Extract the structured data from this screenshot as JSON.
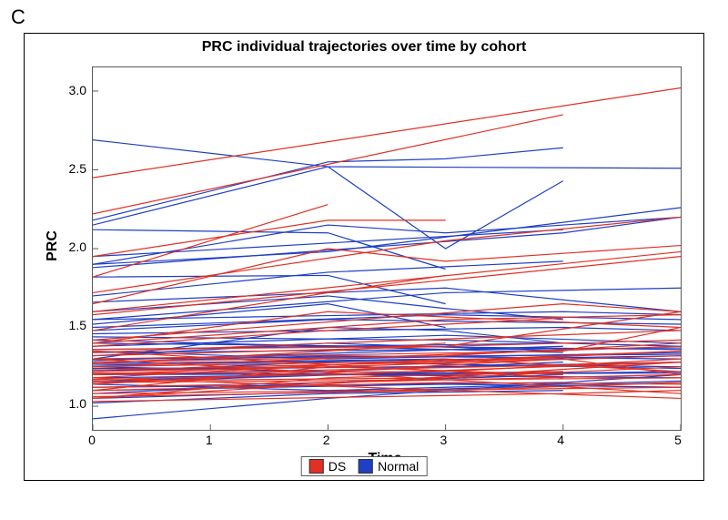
{
  "panel_label": "C",
  "chart": {
    "type": "line-spaghetti",
    "title": "PRC individual trajectories over time by cohort",
    "title_fontsize": 16,
    "title_fontweight": "bold",
    "x_axis": {
      "label": "Time",
      "min": 0,
      "max": 5,
      "ticks": [
        0,
        1,
        2,
        3,
        4,
        5
      ],
      "label_fontsize": 16
    },
    "y_axis": {
      "label": "PRC",
      "min": 0.85,
      "max": 3.15,
      "ticks": [
        1.0,
        1.5,
        2.0,
        2.5,
        3.0
      ],
      "label_fontsize": 16
    },
    "tick_fontsize": 14,
    "background_color": "#ffffff",
    "frame_color": "#000000",
    "plot_border_color": "#5a5a5a",
    "line_width": 1.2,
    "groups": {
      "DS": {
        "color": "#e23024",
        "label": "DS"
      },
      "Normal": {
        "color": "#1f3fc5",
        "label": "Normal"
      }
    },
    "legend": {
      "order": [
        "DS",
        "Normal"
      ],
      "position": "bottom-center"
    },
    "series_DS": [
      [
        [
          0,
          2.45
        ],
        [
          5,
          3.02
        ]
      ],
      [
        [
          0,
          2.22
        ],
        [
          4,
          2.85
        ]
      ],
      [
        [
          0,
          1.95
        ],
        [
          2,
          2.18
        ],
        [
          3,
          2.18
        ]
      ],
      [
        [
          0,
          1.72
        ],
        [
          3,
          2.05
        ],
        [
          5,
          2.2
        ]
      ],
      [
        [
          0,
          1.65
        ],
        [
          2,
          2.0
        ],
        [
          3,
          1.92
        ],
        [
          5,
          2.02
        ]
      ],
      [
        [
          0,
          1.82
        ],
        [
          2,
          2.28
        ]
      ],
      [
        [
          0,
          1.6
        ],
        [
          5,
          1.98
        ]
      ],
      [
        [
          0,
          1.58
        ],
        [
          3,
          1.8
        ],
        [
          5,
          1.95
        ]
      ],
      [
        [
          0,
          1.48
        ],
        [
          2,
          1.72
        ],
        [
          3,
          1.83
        ]
      ],
      [
        [
          0,
          1.42
        ],
        [
          4,
          1.65
        ],
        [
          5,
          1.6
        ]
      ],
      [
        [
          0,
          1.4
        ],
        [
          3,
          1.55
        ],
        [
          5,
          1.58
        ]
      ],
      [
        [
          0,
          1.38
        ],
        [
          2,
          1.48
        ],
        [
          4,
          1.56
        ]
      ],
      [
        [
          0,
          1.36
        ],
        [
          3,
          1.38
        ],
        [
          5,
          1.6
        ]
      ],
      [
        [
          0,
          1.34
        ],
        [
          2,
          1.4
        ],
        [
          5,
          1.48
        ]
      ],
      [
        [
          0,
          1.32
        ],
        [
          5,
          1.42
        ]
      ],
      [
        [
          0,
          1.3
        ],
        [
          4,
          1.35
        ],
        [
          5,
          1.5
        ]
      ],
      [
        [
          0,
          1.28
        ],
        [
          3,
          1.32
        ],
        [
          5,
          1.4
        ]
      ],
      [
        [
          0,
          1.27
        ],
        [
          2,
          1.35
        ],
        [
          3,
          1.4
        ]
      ],
      [
        [
          0,
          1.25
        ],
        [
          5,
          1.38
        ]
      ],
      [
        [
          0,
          1.25
        ],
        [
          4,
          1.3
        ]
      ],
      [
        [
          0,
          1.23
        ],
        [
          3,
          1.28
        ],
        [
          5,
          1.35
        ]
      ],
      [
        [
          0,
          1.22
        ],
        [
          2,
          1.25
        ],
        [
          5,
          1.32
        ]
      ],
      [
        [
          0,
          1.21
        ],
        [
          3,
          1.22
        ],
        [
          5,
          1.3
        ]
      ],
      [
        [
          0,
          1.2
        ],
        [
          5,
          1.35
        ]
      ],
      [
        [
          0,
          1.2
        ],
        [
          4,
          1.26
        ],
        [
          5,
          1.28
        ]
      ],
      [
        [
          0,
          1.18
        ],
        [
          3,
          1.3
        ],
        [
          5,
          1.22
        ]
      ],
      [
        [
          0,
          1.17
        ],
        [
          2,
          1.2
        ],
        [
          5,
          1.28
        ]
      ],
      [
        [
          0,
          1.16
        ],
        [
          3,
          1.18
        ],
        [
          5,
          1.25
        ]
      ],
      [
        [
          0,
          1.15
        ],
        [
          5,
          1.18
        ]
      ],
      [
        [
          0,
          1.14
        ],
        [
          4,
          1.3
        ],
        [
          5,
          1.2
        ]
      ],
      [
        [
          0,
          1.12
        ],
        [
          2,
          1.15
        ],
        [
          5,
          1.2
        ]
      ],
      [
        [
          0,
          1.1
        ],
        [
          3,
          1.15
        ],
        [
          5,
          1.14
        ]
      ],
      [
        [
          0,
          1.1
        ],
        [
          2,
          1.25
        ],
        [
          4,
          1.2
        ]
      ],
      [
        [
          0,
          1.08
        ],
        [
          5,
          1.12
        ]
      ],
      [
        [
          0,
          1.06
        ],
        [
          3,
          1.1
        ],
        [
          5,
          1.15
        ]
      ],
      [
        [
          0,
          1.05
        ],
        [
          2,
          1.18
        ],
        [
          4,
          1.22
        ]
      ],
      [
        [
          0,
          1.03
        ],
        [
          4,
          1.08
        ],
        [
          5,
          1.1
        ]
      ],
      [
        [
          0,
          1.05
        ],
        [
          5,
          1.28
        ]
      ],
      [
        [
          0,
          1.3
        ],
        [
          5,
          1.08
        ]
      ],
      [
        [
          0,
          1.18
        ],
        [
          5,
          1.05
        ]
      ],
      [
        [
          0,
          1.35
        ],
        [
          4,
          1.18
        ]
      ],
      [
        [
          0,
          1.4
        ],
        [
          2,
          1.6
        ],
        [
          5,
          1.5
        ]
      ]
    ],
    "series_Normal": [
      [
        [
          0,
          2.69
        ],
        [
          2,
          2.52
        ],
        [
          5,
          2.51
        ]
      ],
      [
        [
          0,
          2.18
        ],
        [
          2,
          2.55
        ],
        [
          3,
          2.57
        ],
        [
          4,
          2.64
        ]
      ],
      [
        [
          0,
          2.15
        ],
        [
          2,
          2.52
        ],
        [
          3,
          2.0
        ],
        [
          4,
          2.43
        ]
      ],
      [
        [
          0,
          2.12
        ],
        [
          2,
          2.1
        ],
        [
          3,
          1.87
        ]
      ],
      [
        [
          0,
          1.9
        ],
        [
          2,
          2.15
        ],
        [
          3,
          2.1
        ],
        [
          5,
          2.2
        ]
      ],
      [
        [
          0,
          1.9
        ],
        [
          2,
          1.98
        ],
        [
          5,
          2.26
        ]
      ],
      [
        [
          0,
          1.88
        ],
        [
          4,
          2.1
        ],
        [
          5,
          2.2
        ]
      ],
      [
        [
          0,
          1.82
        ],
        [
          2,
          1.83
        ],
        [
          3,
          1.65
        ]
      ],
      [
        [
          0,
          1.7
        ],
        [
          2,
          1.85
        ],
        [
          4,
          1.92
        ]
      ],
      [
        [
          0,
          1.66
        ],
        [
          3,
          1.75
        ],
        [
          5,
          1.6
        ]
      ],
      [
        [
          0,
          1.6
        ],
        [
          2,
          1.7
        ],
        [
          3,
          1.62
        ],
        [
          4,
          1.55
        ]
      ],
      [
        [
          0,
          1.55
        ],
        [
          4,
          1.6
        ],
        [
          5,
          1.58
        ]
      ],
      [
        [
          0,
          1.52
        ],
        [
          2,
          1.65
        ],
        [
          3,
          1.5
        ]
      ],
      [
        [
          0,
          1.5
        ],
        [
          3,
          1.58
        ],
        [
          5,
          1.55
        ]
      ],
      [
        [
          0,
          1.48
        ],
        [
          2,
          1.55
        ],
        [
          5,
          1.52
        ]
      ],
      [
        [
          0,
          1.46
        ],
        [
          4,
          1.5
        ],
        [
          5,
          1.48
        ]
      ],
      [
        [
          0,
          1.44
        ],
        [
          3,
          1.42
        ],
        [
          5,
          1.38
        ]
      ],
      [
        [
          0,
          1.42
        ],
        [
          2,
          1.38
        ],
        [
          4,
          1.34
        ]
      ],
      [
        [
          0,
          1.4
        ],
        [
          5,
          1.36
        ]
      ],
      [
        [
          0,
          1.38
        ],
        [
          3,
          1.45
        ],
        [
          5,
          1.4
        ]
      ],
      [
        [
          0,
          1.36
        ],
        [
          4,
          1.4
        ]
      ],
      [
        [
          0,
          1.35
        ],
        [
          2,
          1.3
        ],
        [
          5,
          1.34
        ]
      ],
      [
        [
          0,
          1.34
        ],
        [
          3,
          1.36
        ],
        [
          5,
          1.37
        ]
      ],
      [
        [
          0,
          1.32
        ],
        [
          2,
          1.4
        ],
        [
          4,
          1.35
        ]
      ],
      [
        [
          0,
          1.3
        ],
        [
          5,
          1.33
        ]
      ],
      [
        [
          0,
          1.29
        ],
        [
          4,
          1.38
        ]
      ],
      [
        [
          0,
          1.28
        ],
        [
          2,
          1.32
        ],
        [
          5,
          1.3
        ]
      ],
      [
        [
          0,
          1.27
        ],
        [
          3,
          1.3
        ]
      ],
      [
        [
          0,
          1.26
        ],
        [
          5,
          1.32
        ]
      ],
      [
        [
          0,
          1.25
        ],
        [
          2,
          1.22
        ],
        [
          4,
          1.28
        ]
      ],
      [
        [
          0,
          1.24
        ],
        [
          3,
          1.25
        ],
        [
          5,
          1.28
        ]
      ],
      [
        [
          0,
          1.23
        ],
        [
          4,
          1.26
        ],
        [
          5,
          1.25
        ]
      ],
      [
        [
          0,
          1.22
        ],
        [
          2,
          1.28
        ],
        [
          5,
          1.24
        ]
      ],
      [
        [
          0,
          1.21
        ],
        [
          3,
          1.2
        ],
        [
          5,
          1.22
        ]
      ],
      [
        [
          0,
          1.2
        ],
        [
          5,
          1.21
        ]
      ],
      [
        [
          0,
          1.18
        ],
        [
          4,
          1.22
        ]
      ],
      [
        [
          0,
          1.16
        ],
        [
          2,
          1.2
        ],
        [
          5,
          1.18
        ]
      ],
      [
        [
          0,
          1.15
        ],
        [
          3,
          1.22
        ]
      ],
      [
        [
          0,
          1.14
        ],
        [
          2,
          1.1
        ],
        [
          5,
          1.16
        ]
      ],
      [
        [
          0,
          1.12
        ],
        [
          4,
          1.15
        ]
      ],
      [
        [
          0,
          1.1
        ],
        [
          3,
          1.14
        ],
        [
          5,
          1.12
        ]
      ],
      [
        [
          0,
          1.08
        ],
        [
          2,
          1.15
        ],
        [
          4,
          1.2
        ]
      ],
      [
        [
          0,
          1.05
        ],
        [
          5,
          1.15
        ]
      ],
      [
        [
          0,
          1.02
        ],
        [
          2,
          1.08
        ],
        [
          4,
          1.1
        ]
      ],
      [
        [
          0,
          0.92
        ],
        [
          2,
          1.05
        ],
        [
          5,
          1.2
        ]
      ],
      [
        [
          0,
          1.55
        ],
        [
          3,
          1.72
        ],
        [
          5,
          1.75
        ]
      ],
      [
        [
          0,
          1.95
        ],
        [
          4,
          2.12
        ]
      ],
      [
        [
          0,
          1.3
        ],
        [
          2,
          1.5
        ],
        [
          3,
          1.48
        ],
        [
          4,
          1.4
        ]
      ]
    ]
  }
}
